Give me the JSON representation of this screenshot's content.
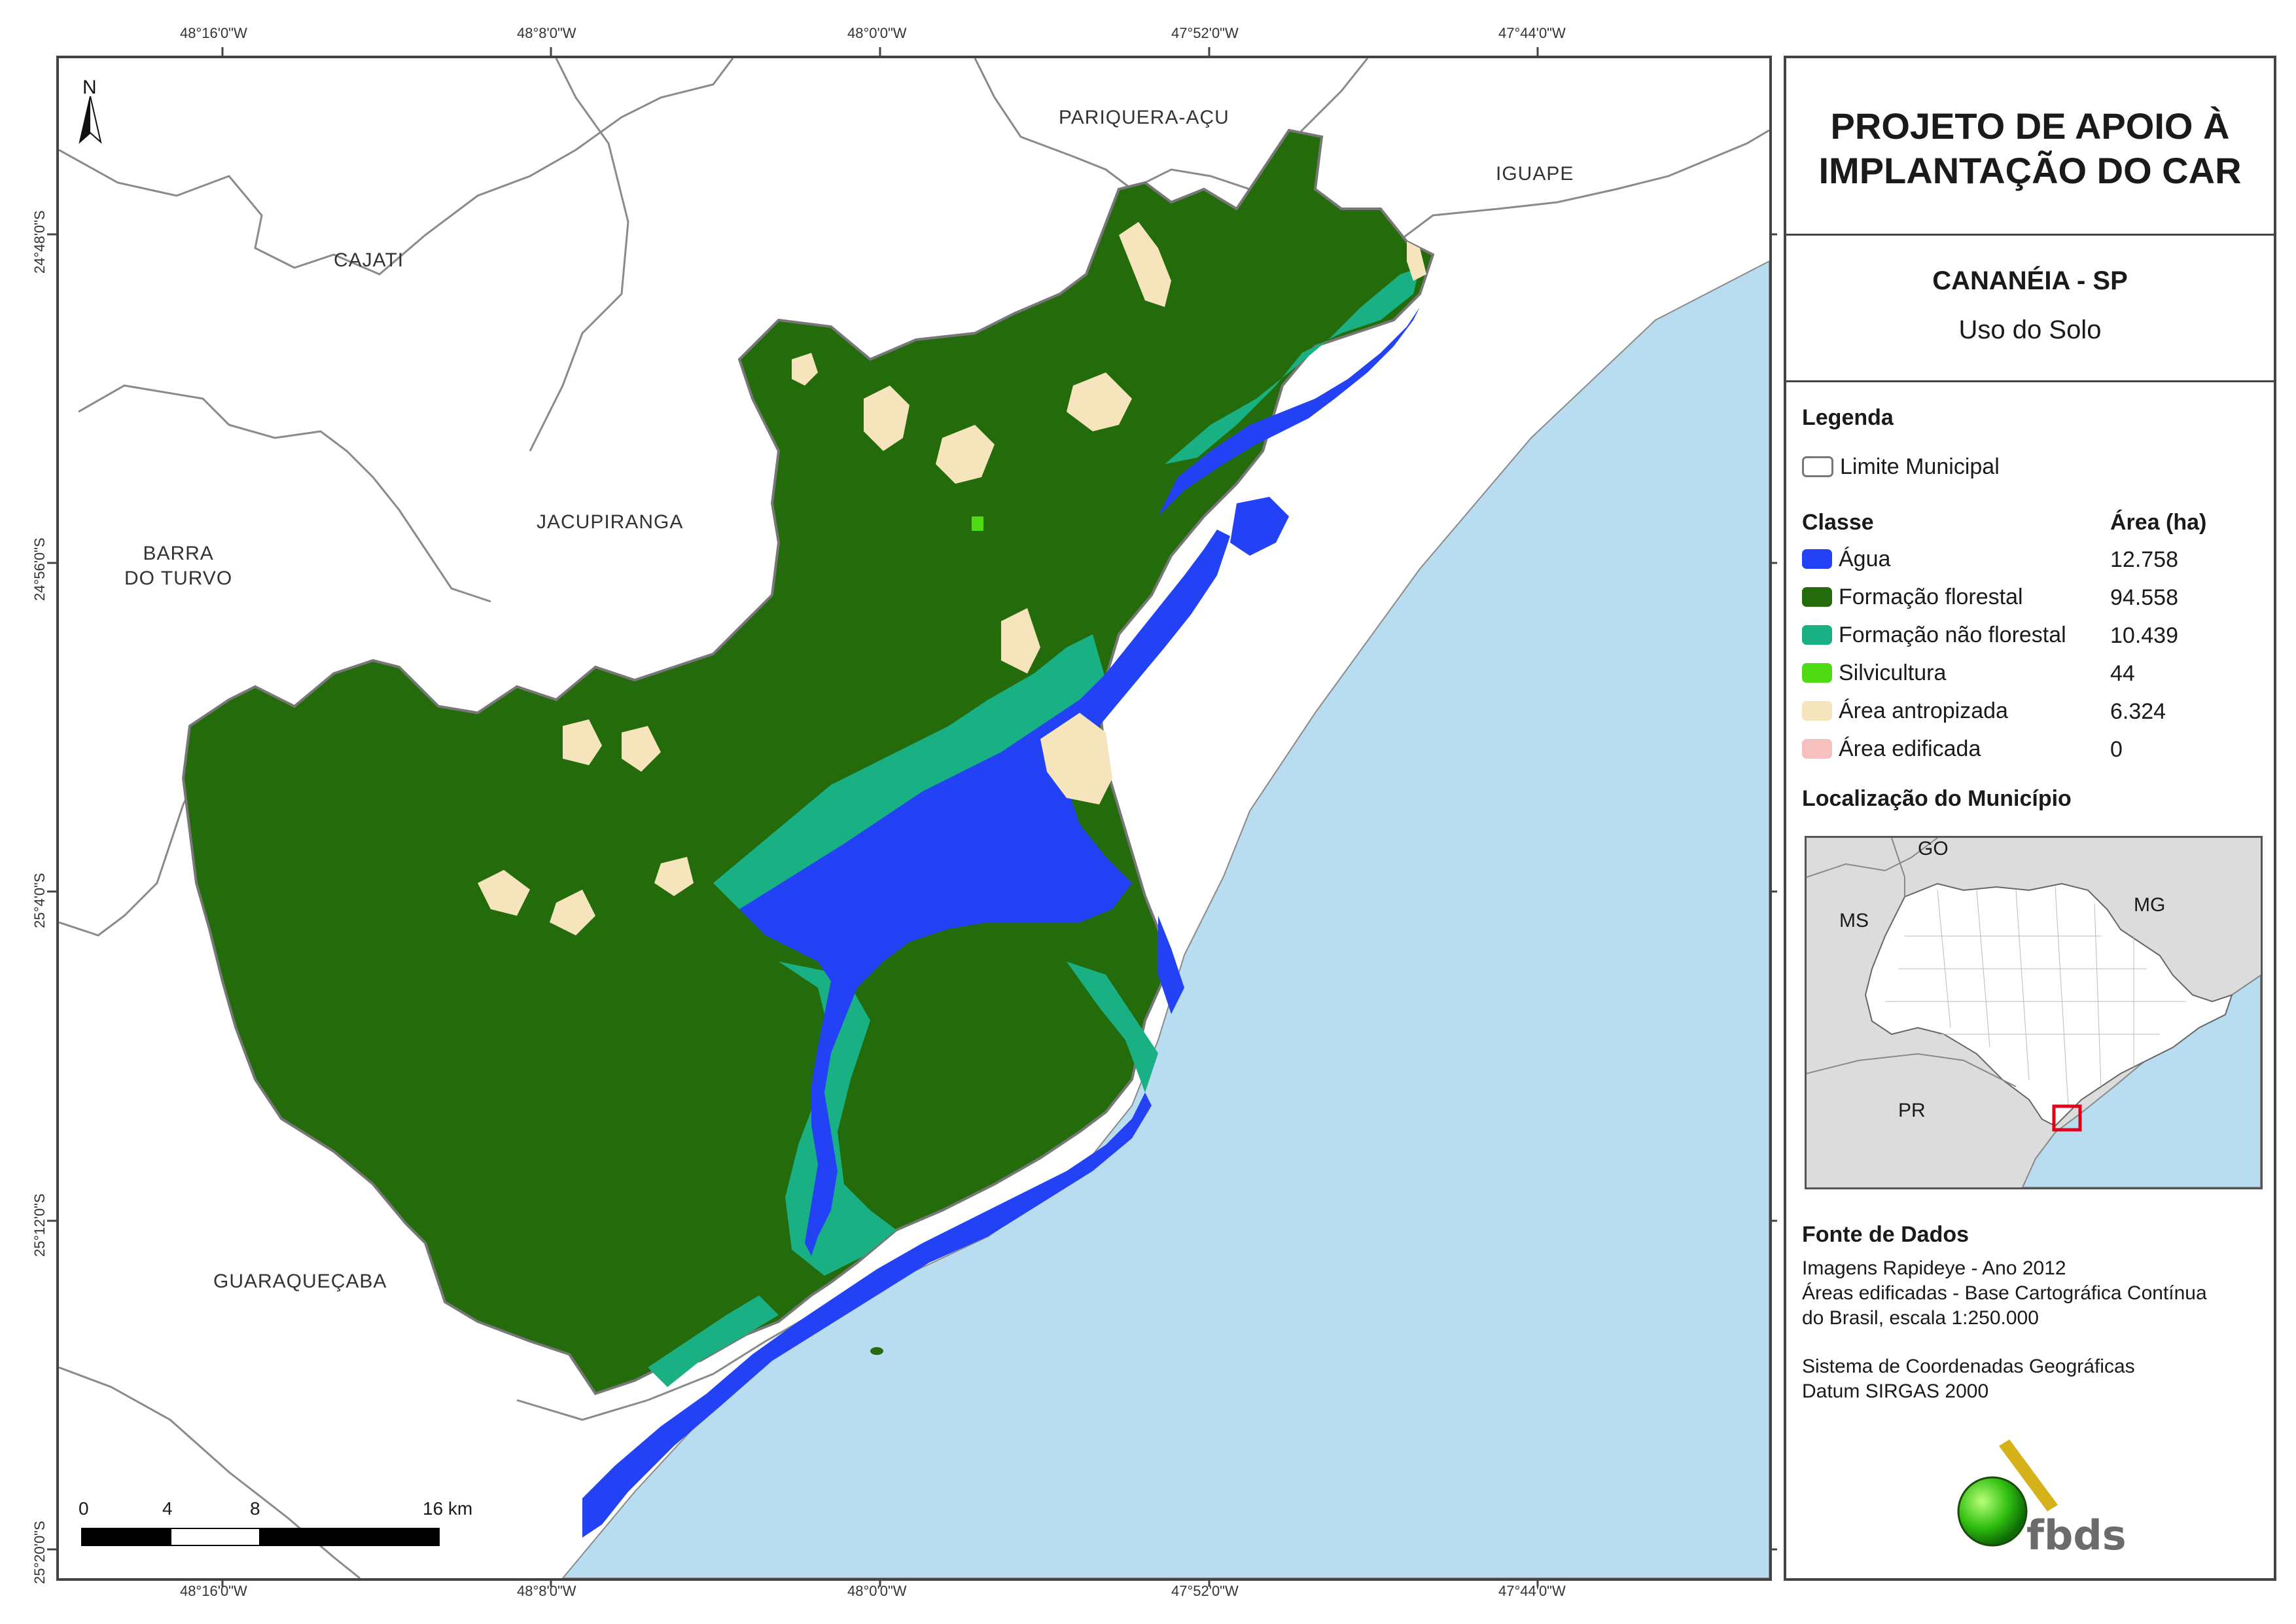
{
  "map": {
    "top_coords": [
      "48°16'0\"W",
      "48°8'0\"W",
      "48°0'0\"W",
      "47°52'0\"W",
      "47°44'0\"W"
    ],
    "bottom_coords": [
      "48°16'0\"W",
      "48°8'0\"W",
      "48°0'0\"W",
      "47°52'0\"W",
      "47°44'0\"W"
    ],
    "left_coords": [
      "24°48'0\"S",
      "24°56'0\"S",
      "25°4'0\"S",
      "25°12'0\"S",
      "25°20'0\"S"
    ],
    "north_label": "N",
    "municipalities": {
      "pariquera": "PARIQUERA-AÇU",
      "iguape": "IGUAPE",
      "cajati": "CAJATI",
      "jacupiranga": "JACUPIRANGA",
      "barra1": "BARRA",
      "barra2": "DO TURVO",
      "guaraquecaba": "GUARAQUEÇABA"
    },
    "scale": {
      "labels": [
        "0",
        "4",
        "8",
        "16 km"
      ]
    },
    "colors": {
      "ocean": "#b8dcf0",
      "forest": "#236b0b",
      "non_forest": "#19b083",
      "water": "#2342f5",
      "anthropized": "#f5e4bc",
      "boundary": "#8a8a8a"
    }
  },
  "panel": {
    "title_line1": "PROJETO DE APOIO À",
    "title_line2": "IMPLANTAÇÃO DO CAR",
    "subtitle": "CANANÉIA - SP",
    "subtitle2": "Uso do Solo",
    "legend_heading": "Legenda",
    "limit_label": "Limite Municipal",
    "class_heading": "Classe",
    "area_heading": "Área (ha)",
    "classes": [
      {
        "label": "Água",
        "value": "12.758",
        "color": "#2342f5"
      },
      {
        "label": "Formação florestal",
        "value": "94.558",
        "color": "#236b0b"
      },
      {
        "label": "Formação não florestal",
        "value": "10.439",
        "color": "#19b083"
      },
      {
        "label": "Silvicultura",
        "value": "44",
        "color": "#4fdb14"
      },
      {
        "label": "Área antropizada",
        "value": "6.324",
        "color": "#f5e4bc"
      },
      {
        "label": "Área edificada",
        "value": "0",
        "color": "#f7c0c0"
      }
    ],
    "location_heading": "Localização do Município",
    "inset_labels": {
      "go": "GO",
      "ms": "MS",
      "mg": "MG",
      "pr": "PR"
    },
    "source_heading": "Fonte de Dados",
    "source_lines": [
      "Imagens Rapideye - Ano 2012",
      "Áreas edificadas - Base Cartográfica Contínua",
      "do Brasil, escala 1:250.000"
    ],
    "coord_lines": [
      "Sistema de Coordenadas Geográficas",
      "Datum SIRGAS 2000"
    ],
    "logo_text": "fbds"
  }
}
